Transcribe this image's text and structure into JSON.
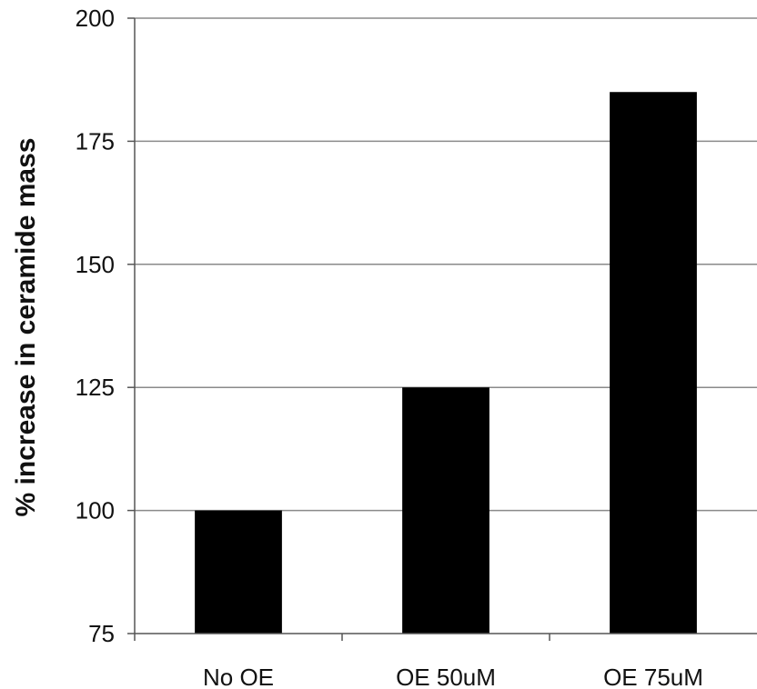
{
  "chart_data": {
    "type": "bar",
    "categories": [
      "No OE",
      "OE 50uM",
      "OE 75uM"
    ],
    "values": [
      100,
      125,
      185
    ],
    "title": "",
    "xlabel": "",
    "ylabel": "% increase in ceramide mass",
    "ylim": [
      75,
      200
    ],
    "yticks": [
      "75",
      "100",
      "125",
      "150",
      "175",
      "200"
    ],
    "grid": true,
    "legend": "none",
    "colors": {
      "bar": "#000000",
      "grid": "#8a8a8a",
      "axis": "#555555"
    }
  }
}
